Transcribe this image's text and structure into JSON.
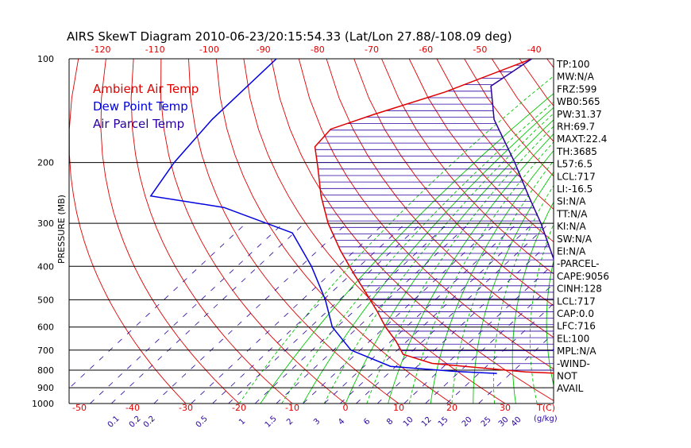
{
  "chart_data": {
    "type": "skewt",
    "title": "AIRS SkewT Diagram 2010-06-23/20:15:54.33 (Lat/Lon 27.88/-108.09 deg)",
    "ylabel": "PRESSURE (MB)",
    "xlabel": "T(C)",
    "mixing_ratio_unit": "(g/kg)",
    "pressure_ticks": [
      100,
      200,
      300,
      400,
      500,
      600,
      700,
      800,
      900,
      1000
    ],
    "ylim": [
      1000,
      100
    ],
    "bottom_temp_ticks": [
      -50,
      -40,
      -30,
      -20,
      -10,
      0,
      10,
      20,
      30
    ],
    "top_temp_ticks": [
      -120,
      -110,
      -100,
      -90,
      -80,
      -70,
      -60,
      -50,
      -40
    ],
    "mixing_ratio_labels": [
      "0.1",
      "0.2",
      "0.2",
      "0.5",
      "1",
      "1.5",
      "2",
      "3",
      "4",
      "6",
      "8",
      "10",
      "12",
      "15",
      "20",
      "25",
      "30",
      "40"
    ],
    "legend": [
      {
        "label": "Ambient Air Temp",
        "color": "#e00000"
      },
      {
        "label": "Dew Point Temp",
        "color": "#0000e0"
      },
      {
        "label": "Air Parcel Temp",
        "color": "#2a00a0"
      }
    ],
    "stats": [
      "TP:100",
      "MW:N/A",
      "FRZ:599",
      "WB0:565",
      "PW:31.37",
      "RH:69.7",
      "MAXT:22.4",
      "TH:3685",
      "L57:6.5",
      "LCL:717",
      "LI:-16.5",
      "SI:N/A",
      "TT:N/A",
      "KI:N/A",
      "SW:N/A",
      "EI:N/A",
      "-PARCEL-",
      "CAPE:9056",
      "CINH:128",
      "LCL:717",
      "CAP:0.0",
      "LFC:716",
      "EL:100",
      "MPL:N/A",
      "-WIND-",
      "NOT",
      "AVAIL"
    ],
    "series": [
      {
        "name": "Ambient Air Temp",
        "color": "#e00000",
        "points": [
          [
            818,
            32
          ],
          [
            810,
            25
          ],
          [
            765,
            5
          ],
          [
            720,
            -3
          ],
          [
            660,
            -8
          ],
          [
            600,
            -14
          ],
          [
            540,
            -20
          ],
          [
            480,
            -27
          ],
          [
            420,
            -35
          ],
          [
            360,
            -44
          ],
          [
            300,
            -54
          ],
          [
            250,
            -63
          ],
          [
            205,
            -72
          ],
          [
            180,
            -78
          ],
          [
            160,
            -80
          ],
          [
            145,
            -76
          ],
          [
            125,
            -69
          ],
          [
            100,
            -62
          ]
        ]
      },
      {
        "name": "Dew Point Temp",
        "color": "#0000e0",
        "points": [
          [
            818,
            20
          ],
          [
            808,
            12
          ],
          [
            780,
            -2
          ],
          [
            700,
            -14
          ],
          [
            600,
            -24
          ],
          [
            500,
            -33
          ],
          [
            400,
            -45
          ],
          [
            320,
            -58
          ],
          [
            270,
            -78
          ],
          [
            250,
            -95
          ],
          [
            200,
            -100
          ],
          [
            150,
            -105
          ],
          [
            100,
            -110
          ]
        ]
      },
      {
        "name": "Air Parcel Temp",
        "color": "#2a00a0",
        "points": [
          [
            818,
            32
          ],
          [
            760,
            28
          ],
          [
            717,
            26
          ],
          [
            700,
            24
          ],
          [
            600,
            19
          ],
          [
            500,
            12
          ],
          [
            400,
            1
          ],
          [
            300,
            -14
          ],
          [
            250,
            -24
          ],
          [
            200,
            -36
          ],
          [
            150,
            -52
          ],
          [
            120,
            -62
          ],
          [
            100,
            -62
          ]
        ]
      }
    ],
    "colors": {
      "dry_adiabat": "#e00000",
      "moist_adiabat": "#00c800",
      "mixing_ratio": "#2a00a0",
      "isobar": "#000000"
    }
  }
}
